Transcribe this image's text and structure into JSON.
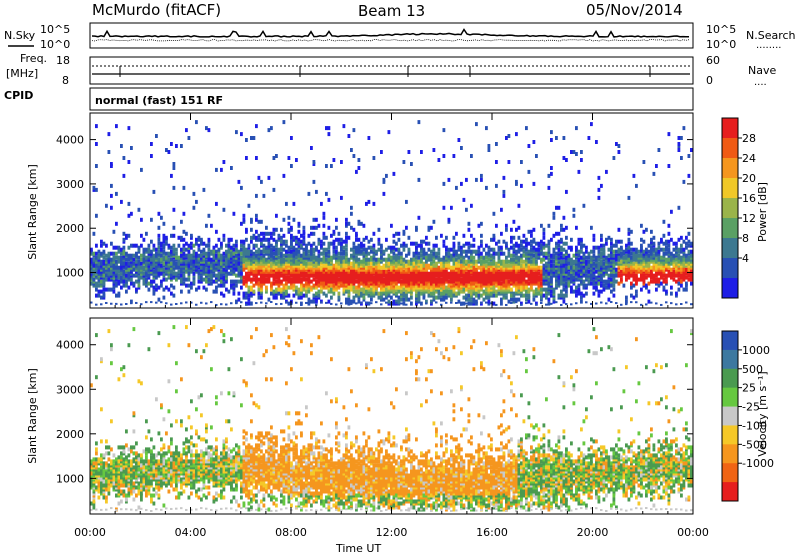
{
  "header": {
    "station": "McMurdo (fitACF)",
    "beam": "Beam 13",
    "date": "05/Nov/2014"
  },
  "noise_panel": {
    "left_label": "N.Sky",
    "right_label": "N.Search",
    "right_legend_line": "........",
    "tick_top": "10^5",
    "tick_bottom": "10^0"
  },
  "freq_panel": {
    "left_label_1": "Freq.",
    "left_label_2": "[MHz]",
    "left_ticks": [
      "18",
      "8"
    ],
    "right_label": "Nave",
    "right_legend_line": "....",
    "right_ticks": [
      "60",
      "0"
    ]
  },
  "cpid": {
    "label": "CPID",
    "value": "normal (fast) 151 RF"
  },
  "chart_data": [
    {
      "type": "heatmap",
      "name": "power",
      "ylabel": "Slant Range [km]",
      "xlabel": "",
      "x_ticks": [
        "00:00",
        "04:00",
        "08:00",
        "12:00",
        "16:00",
        "20:00",
        "00:00"
      ],
      "y_ticks": [
        1000,
        2000,
        3000,
        4000
      ],
      "ylim": [
        200,
        4600
      ],
      "colorbar": {
        "label": "Power [dB]",
        "ticks": [
          "28",
          "24",
          "20",
          "16",
          "12",
          "8",
          "4"
        ],
        "colors": [
          "#e61e1e",
          "#f05a14",
          "#f5961e",
          "#f0c828",
          "#9ab44a",
          "#5aa064",
          "#3c7890",
          "#2850b4",
          "#1e1ee6"
        ]
      }
    },
    {
      "type": "heatmap",
      "name": "velocity",
      "ylabel": "Slant Range [km]",
      "xlabel": "Time UT",
      "x_ticks": [
        "00:00",
        "04:00",
        "08:00",
        "12:00",
        "16:00",
        "20:00",
        "00:00"
      ],
      "y_ticks": [
        1000,
        2000,
        3000,
        4000
      ],
      "ylim": [
        200,
        4600
      ],
      "colorbar": {
        "label": "Velocity [m s⁻¹]",
        "ticks": [
          "1000",
          "500",
          "25",
          "-25",
          "-100",
          "-500",
          "-1000"
        ],
        "colors": [
          "#2850b4",
          "#3c78a0",
          "#4a9a50",
          "#66c840",
          "#c8c8c8",
          "#f5c828",
          "#f5961e",
          "#f06414",
          "#e61e1e"
        ]
      }
    }
  ]
}
